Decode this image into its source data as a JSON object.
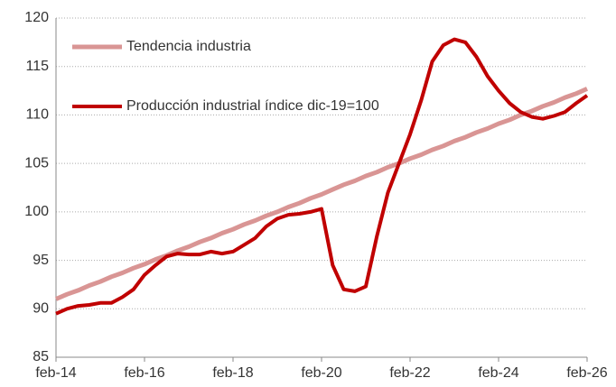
{
  "chart_data": {
    "type": "line",
    "categories": [
      "feb-14",
      null,
      null,
      null,
      null,
      null,
      null,
      null,
      "feb-16",
      null,
      null,
      null,
      null,
      null,
      null,
      null,
      "feb-18",
      null,
      null,
      null,
      null,
      null,
      null,
      null,
      "feb-20",
      null,
      null,
      null,
      null,
      null,
      null,
      null,
      "feb-22",
      null,
      null,
      null,
      null,
      null,
      null,
      null,
      "feb-24",
      null,
      null,
      null,
      null,
      null,
      null,
      null,
      "feb-26"
    ],
    "series": [
      {
        "name": "Tendencia industria",
        "color": "#d99594",
        "values": [
          91.0,
          91.5,
          91.9,
          92.4,
          92.8,
          93.3,
          93.7,
          94.2,
          94.6,
          95.1,
          95.5,
          96.0,
          96.4,
          96.9,
          97.3,
          97.8,
          98.2,
          98.7,
          99.1,
          99.6,
          100.0,
          100.5,
          100.9,
          101.4,
          101.8,
          102.3,
          102.8,
          103.2,
          103.7,
          104.1,
          104.6,
          105.0,
          105.5,
          105.9,
          106.4,
          106.8,
          107.3,
          107.7,
          108.2,
          108.6,
          109.1,
          109.5,
          110.0,
          110.4,
          110.9,
          111.3,
          111.8,
          112.2,
          112.7
        ]
      },
      {
        "name": "Producción industrial índice dic-19=100",
        "color": "#c00000",
        "values": [
          89.5,
          90.0,
          90.3,
          90.4,
          90.6,
          90.6,
          91.2,
          92.0,
          93.5,
          94.5,
          95.4,
          95.7,
          95.6,
          95.6,
          95.9,
          95.7,
          95.9,
          96.6,
          97.3,
          98.5,
          99.3,
          99.7,
          99.8,
          100.0,
          100.3,
          94.5,
          92.0,
          91.8,
          92.3,
          97.5,
          102.0,
          105.0,
          108.0,
          111.5,
          115.5,
          117.2,
          117.8,
          117.5,
          116.0,
          114.0,
          112.5,
          111.2,
          110.3,
          109.8,
          109.6,
          109.9,
          110.3,
          111.2,
          112.0
        ]
      }
    ],
    "ylim": [
      85,
      120
    ],
    "yticks": [
      85,
      90,
      95,
      100,
      105,
      110,
      115,
      120
    ],
    "grid": true,
    "legend": "top-left"
  }
}
